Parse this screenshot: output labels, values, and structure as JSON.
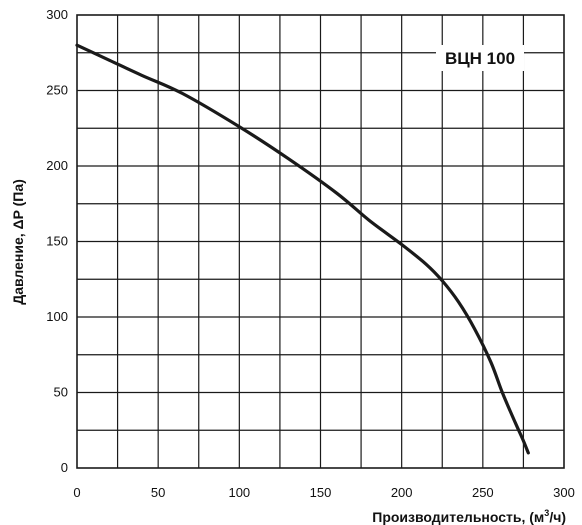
{
  "chart_data": {
    "type": "line",
    "title": "ВЦН 100",
    "xlabel": {
      "main": "Производительность, (м",
      "sup": "3",
      "tail": "/ч)"
    },
    "ylabel": "Давление, ΔP (Па)",
    "xlim": [
      0,
      300
    ],
    "ylim": [
      0,
      300
    ],
    "x_ticks": [
      0,
      50,
      100,
      150,
      200,
      250,
      300
    ],
    "y_ticks": [
      0,
      50,
      100,
      150,
      200,
      250,
      300
    ],
    "x_grid_step": 25,
    "y_grid_step": 25,
    "grid": true,
    "series": [
      {
        "name": "",
        "color": "#1a1a1a",
        "x": [
          0,
          20,
          40,
          65,
          100,
          130,
          160,
          180,
          200,
          215,
          225,
          235,
          245,
          255,
          262,
          270,
          275,
          278
        ],
        "y": [
          280,
          270,
          260,
          248,
          226,
          205,
          182,
          164,
          148,
          135,
          124,
          110,
          92,
          70,
          50,
          30,
          18,
          10
        ]
      }
    ]
  }
}
